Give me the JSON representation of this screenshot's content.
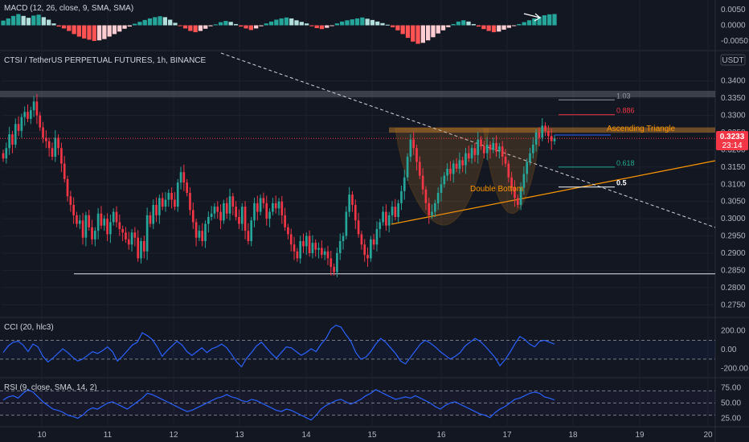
{
  "chart_data": {
    "type": "candlestick",
    "symbol_title": "CTSI / TetherUS PERPETUAL FUTURES, 1h, BINANCE",
    "currency_badge": "USDT",
    "price": {
      "ylim": [
        0.2725,
        0.3425
      ],
      "ticks": [
        "0.3400",
        "0.3350",
        "0.3300",
        "0.3250",
        "0.3200",
        "0.3150",
        "0.3100",
        "0.3050",
        "0.3000",
        "0.2950",
        "0.2900",
        "0.2850",
        "0.2800",
        "0.2750"
      ],
      "last_price": "0.3233",
      "countdown": "23:14",
      "badge_color": "#f23645",
      "up_color": "#26a69a",
      "down_color": "#f23645",
      "closes": [
        0.3175,
        0.3205,
        0.3245,
        0.3215,
        0.3275,
        0.3255,
        0.3295,
        0.331,
        0.329,
        0.3315,
        0.334,
        0.33,
        0.3265,
        0.3235,
        0.3225,
        0.3205,
        0.318,
        0.3235,
        0.3205,
        0.316,
        0.3115,
        0.3065,
        0.304,
        0.301,
        0.2985,
        0.2995,
        0.2945,
        0.301,
        0.2975,
        0.294,
        0.2965,
        0.3015,
        0.298,
        0.3,
        0.2955,
        0.299,
        0.302,
        0.299,
        0.297,
        0.296,
        0.294,
        0.2925,
        0.296,
        0.2945,
        0.2885,
        0.2935,
        0.2905,
        0.301,
        0.2985,
        0.304,
        0.301,
        0.306,
        0.3035,
        0.3055,
        0.3075,
        0.3055,
        0.3035,
        0.3105,
        0.3135,
        0.3105,
        0.3075,
        0.3025,
        0.299,
        0.2945,
        0.2965,
        0.2935,
        0.2985,
        0.3005,
        0.3015,
        0.3035,
        0.302,
        0.2995,
        0.3045,
        0.3015,
        0.3065,
        0.3035,
        0.3005,
        0.2985,
        0.3035,
        0.2965,
        0.2935,
        0.2995,
        0.3045,
        0.302,
        0.306,
        0.3045,
        0.3,
        0.302,
        0.3045,
        0.303,
        0.305,
        0.301,
        0.2975,
        0.2955,
        0.2925,
        0.2905,
        0.2885,
        0.2935,
        0.292,
        0.295,
        0.29,
        0.293,
        0.291,
        0.2915,
        0.2895,
        0.2905,
        0.2885,
        0.286,
        0.2845,
        0.29,
        0.2935,
        0.295,
        0.302,
        0.307,
        0.304,
        0.2995,
        0.2955,
        0.2925,
        0.2895,
        0.2885,
        0.294,
        0.2925,
        0.297,
        0.299,
        0.302,
        0.298,
        0.301,
        0.3035,
        0.3005,
        0.3045,
        0.308,
        0.312,
        0.318,
        0.323,
        0.3205,
        0.3165,
        0.3125,
        0.3085,
        0.3045,
        0.301,
        0.302,
        0.3045,
        0.3075,
        0.31,
        0.3125,
        0.3145,
        0.313,
        0.316,
        0.3145,
        0.317,
        0.3155,
        0.319,
        0.3175,
        0.3205,
        0.3185,
        0.323,
        0.321,
        0.319,
        0.3215,
        0.32,
        0.322,
        0.3195,
        0.321,
        0.318,
        0.316,
        0.312,
        0.309,
        0.306,
        0.304,
        0.309,
        0.313,
        0.3165,
        0.319,
        0.3215,
        0.325,
        0.3235,
        0.327,
        0.3255,
        0.324,
        0.3225,
        0.3233
      ]
    },
    "x_ticks": [
      "10",
      "11",
      "12",
      "13",
      "14",
      "15",
      "16",
      "17",
      "18",
      "19",
      "20"
    ],
    "fib_levels": [
      {
        "label": "1.03",
        "value": 0.3345,
        "color": "#9598a1"
      },
      {
        "label": "0.886",
        "value": 0.3302,
        "color": "#f23645"
      },
      {
        "label": "0.618",
        "value": 0.315,
        "color": "#22ab94"
      },
      {
        "label": "0.5",
        "value": 0.3092,
        "color": "#ffffff"
      }
    ],
    "annotations": {
      "ascending_triangle": "Ascending Triangle",
      "double_bottom": "Double Bottom"
    },
    "support_level": 0.284,
    "resistance_zone": [
      0.325,
      0.3265
    ],
    "macd": {
      "title": "MACD (12, 26, close, 9, SMA, SMA)",
      "ticks": [
        "0.0050",
        "0.0000",
        "-0.0050"
      ],
      "ylim": [
        -0.0068,
        0.0068
      ],
      "values": [
        0.0015,
        0.0022,
        0.003,
        0.0036,
        0.003,
        0.0024,
        0.0031,
        0.0034,
        0.0026,
        0.0018,
        0.0006,
        -0.0004,
        -0.001,
        -0.0018,
        -0.0028,
        -0.0036,
        -0.0042,
        -0.0046,
        -0.005,
        -0.0048,
        -0.0044,
        -0.0036,
        -0.0028,
        -0.002,
        -0.0011,
        -0.0004,
        0.0005,
        0.0011,
        0.0017,
        0.0022,
        0.0026,
        0.0029,
        0.0026,
        0.0018,
        0.0008,
        -0.0002,
        -0.001,
        -0.0018,
        -0.0022,
        -0.0018,
        -0.0011,
        -0.0003,
        0.0003,
        0.001,
        0.0014,
        0.0011,
        0.0004,
        -0.0004,
        -0.001,
        -0.0015,
        -0.001,
        -0.0003,
        0.0006,
        0.0012,
        0.0018,
        0.0022,
        0.0025,
        0.0022,
        0.0016,
        0.0011,
        0.0006,
        -0.0003,
        -0.0009,
        -0.0012,
        -0.0008,
        -0.0002,
        0.0006,
        0.0012,
        0.0016,
        0.0019,
        0.0022,
        0.0025,
        0.0021,
        0.0017,
        0.0012,
        0.0007,
        0.0002,
        -0.0006,
        -0.0016,
        -0.0028,
        -0.004,
        -0.0052,
        -0.0059,
        -0.0056,
        -0.0048,
        -0.0038,
        -0.0026,
        -0.0016,
        -0.0006,
        0.0004,
        0.0012,
        0.0016,
        0.0012,
        0.0004,
        -0.0004,
        -0.0012,
        -0.0018,
        -0.0022,
        -0.002,
        -0.0014,
        -0.0008,
        -0.0002,
        0.0004,
        0.001,
        0.0016,
        0.0022,
        0.0028,
        0.0032,
        0.0035,
        0.0036
      ]
    },
    "cci": {
      "title": "CCI (20, hlc3)",
      "ticks": [
        "200.00",
        "0.00",
        "-200.00"
      ],
      "ylim": [
        -280,
        300
      ],
      "values": [
        -30,
        40,
        80,
        90,
        50,
        -20,
        60,
        30,
        -70,
        -130,
        -90,
        -40,
        10,
        -30,
        -80,
        -120,
        -100,
        -60,
        -20,
        -40,
        -10,
        30,
        -20,
        -120,
        -70,
        -10,
        50,
        80,
        180,
        150,
        110,
        30,
        -70,
        -10,
        40,
        90,
        50,
        -20,
        -60,
        -20,
        20,
        -30,
        10,
        30,
        60,
        20,
        -50,
        -130,
        -180,
        -90,
        -30,
        40,
        80,
        20,
        -40,
        -90,
        -30,
        30,
        20,
        -20,
        -60,
        -30,
        10,
        -20,
        60,
        120,
        220,
        260,
        240,
        160,
        90,
        -30,
        -100,
        -80,
        -20,
        60,
        120,
        80,
        20,
        -40,
        -120,
        -150,
        -80,
        -10,
        60,
        100,
        70,
        30,
        -20,
        -60,
        -100,
        -70,
        -30,
        40,
        80,
        120,
        90,
        40,
        -20,
        -80,
        -170,
        -110,
        -30,
        60,
        140,
        110,
        60,
        30,
        90,
        100,
        80,
        60
      ]
    },
    "rsi": {
      "title": "RSI (9, close, SMA, 14, 2)",
      "ticks": [
        "75.00",
        "50.00",
        "25.00"
      ],
      "bands": [
        70,
        50,
        30
      ],
      "ylim": [
        15,
        85
      ],
      "values": [
        55,
        60,
        62,
        58,
        66,
        72,
        68,
        60,
        52,
        46,
        40,
        38,
        35,
        30,
        28,
        25,
        30,
        38,
        42,
        40,
        45,
        50,
        52,
        48,
        44,
        40,
        46,
        52,
        58,
        66,
        64,
        60,
        56,
        52,
        48,
        44,
        40,
        36,
        38,
        42,
        46,
        50,
        54,
        58,
        60,
        64,
        60,
        58,
        54,
        52,
        56,
        54,
        50,
        46,
        42,
        38,
        36,
        40,
        38,
        34,
        30,
        26,
        22,
        30,
        40,
        46,
        50,
        54,
        56,
        52,
        48,
        52,
        56,
        62,
        66,
        72,
        68,
        64,
        60,
        56,
        58,
        60,
        58,
        62,
        58,
        54,
        50,
        44,
        40,
        46,
        50,
        52,
        48,
        44,
        40,
        36,
        32,
        30,
        26,
        34,
        40,
        44,
        50,
        56,
        58,
        62,
        66,
        68,
        66,
        60,
        58,
        55
      ]
    }
  }
}
